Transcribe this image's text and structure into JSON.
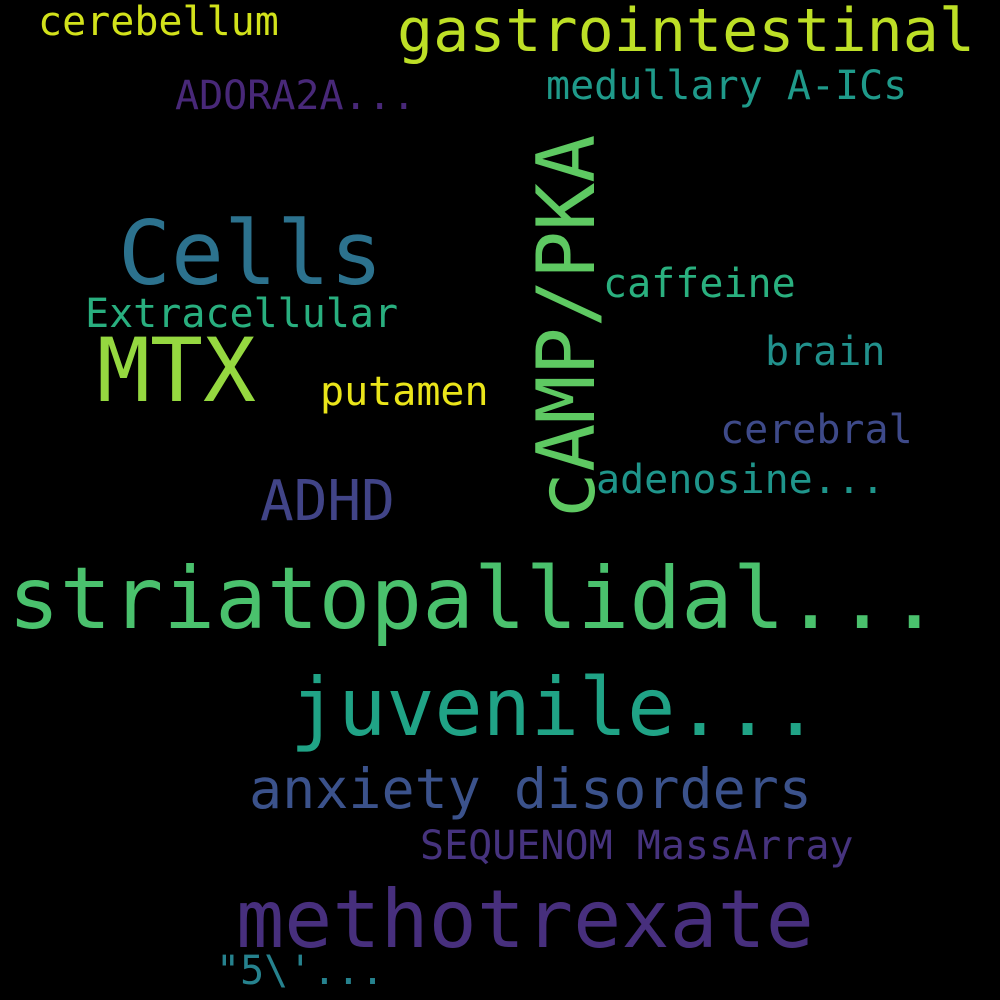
{
  "background_color": "#000000",
  "words": [
    {
      "key": "cerebellum",
      "text": "cerebellum",
      "color": "#D2E21B"
    },
    {
      "key": "gastrointestinal",
      "text": "gastrointestinal",
      "color": "#BDDF26"
    },
    {
      "key": "adora2a",
      "text": "ADORA2A...",
      "color": "#482878"
    },
    {
      "key": "medullary",
      "text": "medullary A-ICs",
      "color": "#1F9A8A"
    },
    {
      "key": "cells",
      "text": "Cells",
      "color": "#2C728E"
    },
    {
      "key": "camp_pka",
      "text": "cAMP/PKA",
      "color": "#5EC962"
    },
    {
      "key": "caffeine",
      "text": "caffeine",
      "color": "#2AB07F"
    },
    {
      "key": "extracellular",
      "text": "Extracellular",
      "color": "#29AF7F"
    },
    {
      "key": "brain",
      "text": "brain",
      "color": "#21918C"
    },
    {
      "key": "mtx",
      "text": "MTX",
      "color": "#95D840"
    },
    {
      "key": "putamen",
      "text": "putamen",
      "color": "#EAE51A"
    },
    {
      "key": "cerebral",
      "text": "cerebral",
      "color": "#3E4A89"
    },
    {
      "key": "adenosine",
      "text": "adenosine...",
      "color": "#1F958B"
    },
    {
      "key": "adhd",
      "text": "ADHD",
      "color": "#414487"
    },
    {
      "key": "striatopallidal",
      "text": "striatopallidal...",
      "color": "#4AC16D"
    },
    {
      "key": "juvenile",
      "text": "juvenile...",
      "color": "#20A386"
    },
    {
      "key": "anxiety",
      "text": "anxiety disorders",
      "color": "#3B528B"
    },
    {
      "key": "sequenom",
      "text": "SEQUENOM MassArray",
      "color": "#46337E"
    },
    {
      "key": "methotrexate",
      "text": "methotrexate",
      "color": "#472F7D"
    },
    {
      "key": "five_prime",
      "text": "\"5\\'...",
      "color": "#26828E"
    }
  ]
}
